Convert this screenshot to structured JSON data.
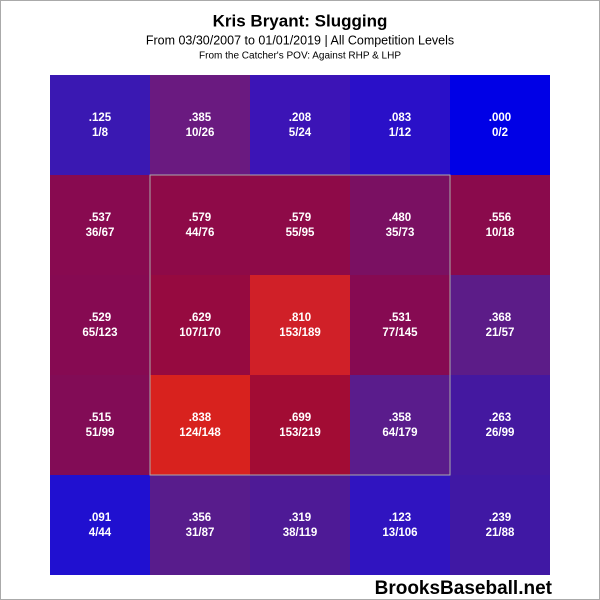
{
  "chart_data": {
    "type": "heatmap",
    "title": "Kris Bryant: Slugging",
    "subtitle": "From 03/30/2007 to 01/01/2019 | All Competition Levels",
    "note": "From the Catcher's POV:  Against RHP & LHP",
    "source": "BrooksBaseball.net",
    "values": [
      [
        0.125,
        0.385,
        0.208,
        0.083,
        0.0
      ],
      [
        0.537,
        0.579,
        0.579,
        0.48,
        0.556
      ],
      [
        0.529,
        0.629,
        0.81,
        0.531,
        0.368
      ],
      [
        0.515,
        0.838,
        0.699,
        0.358,
        0.263
      ],
      [
        0.091,
        0.356,
        0.319,
        0.123,
        0.239
      ]
    ],
    "value_labels": [
      [
        ".125",
        ".385",
        ".208",
        ".083",
        ".000"
      ],
      [
        ".537",
        ".579",
        ".579",
        ".480",
        ".556"
      ],
      [
        ".529",
        ".629",
        ".810",
        ".531",
        ".368"
      ],
      [
        ".515",
        ".838",
        ".699",
        ".358",
        ".263"
      ],
      [
        ".091",
        ".356",
        ".319",
        ".123",
        ".239"
      ]
    ],
    "counts": [
      [
        "1/8",
        "10/26",
        "5/24",
        "1/12",
        "0/2"
      ],
      [
        "36/67",
        "44/76",
        "55/95",
        "35/73",
        "10/18"
      ],
      [
        "65/123",
        "107/170",
        "153/189",
        "77/145",
        "21/57"
      ],
      [
        "51/99",
        "124/148",
        "153/219",
        "64/179",
        "26/99"
      ],
      [
        "4/44",
        "31/87",
        "38/119",
        "13/106",
        "21/88"
      ]
    ],
    "colors": [
      [
        "#3a18b2",
        "#6a1a80",
        "#3c14b6",
        "#2a10c8",
        "#0000e6"
      ],
      [
        "#880a50",
        "#8e0a48",
        "#8e0a48",
        "#7a1062",
        "#8a0a4c"
      ],
      [
        "#860a52",
        "#960a40",
        "#d02028",
        "#860a52",
        "#5c1c88"
      ],
      [
        "#820c56",
        "#d8221e",
        "#a20c34",
        "#5a1c8c",
        "#4418a0"
      ],
      [
        "#2010d0",
        "#581c8c",
        "#4e1a96",
        "#3014c0",
        "#4018a4"
      ]
    ]
  }
}
